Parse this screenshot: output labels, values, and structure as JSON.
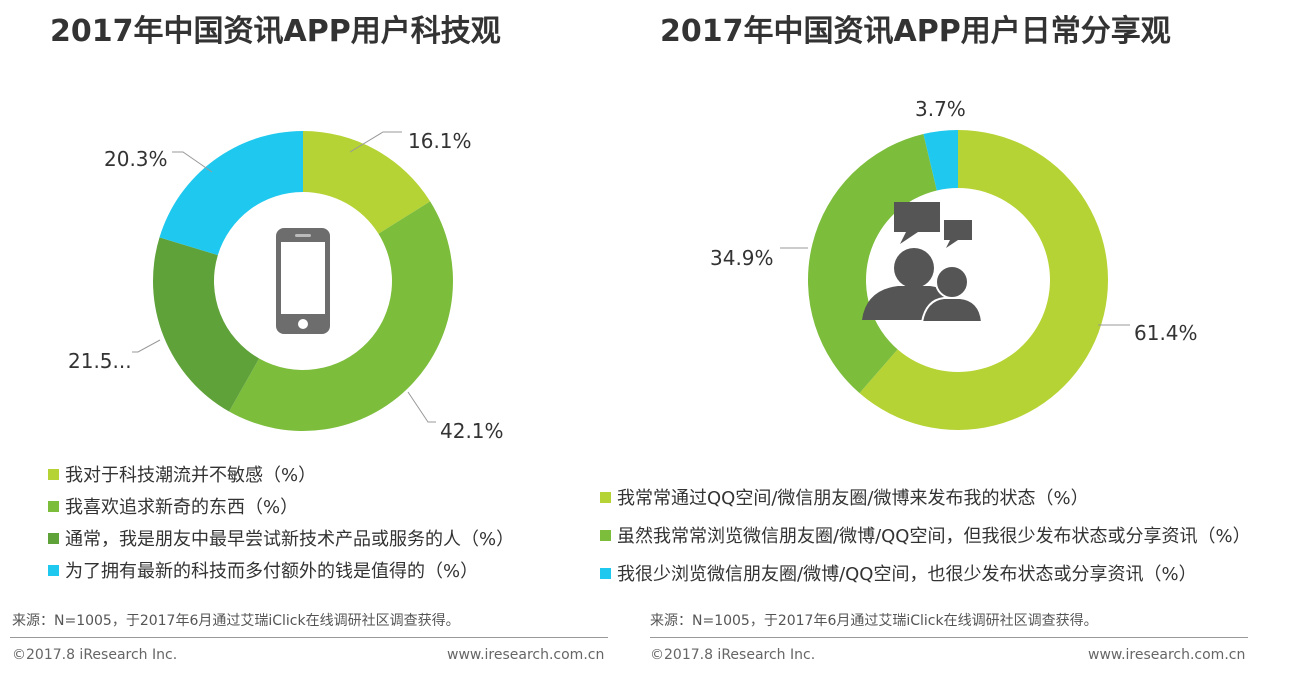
{
  "chart_data": [
    {
      "type": "pie",
      "title": "2017年中国资讯APP用户科技观",
      "categories": [
        "我对于科技潮流并不敏感（%）",
        "我喜欢追求新奇的东西（%）",
        "通常，我是朋友中最早尝试新技术产品或服务的人（%）",
        "为了拥有最新的科技而多付额外的钱是值得的（%）"
      ],
      "values": [
        16.1,
        42.1,
        21.5,
        20.3
      ],
      "data_labels": [
        "16.1%",
        "42.1%",
        "21.5...",
        "20.3%"
      ],
      "colors": [
        "#b5d334",
        "#7cbd3c",
        "#5fa23a",
        "#1fc8ee"
      ],
      "center_icon": "smartphone-icon",
      "legend_position": "bottom"
    },
    {
      "type": "pie",
      "title": "2017年中国资讯APP用户日常分享观",
      "categories": [
        "我常常通过QQ空间/微信朋友圈/微博来发布我的状态（%）",
        "虽然我常常浏览微信朋友圈/微博/QQ空间，但我很少发布状态或分享资讯（%）",
        "我很少浏览微信朋友圈/微博/QQ空间，也很少发布状态或分享资讯（%）"
      ],
      "values": [
        61.4,
        34.9,
        3.7
      ],
      "data_labels": [
        "61.4%",
        "34.9%",
        "3.7%"
      ],
      "colors": [
        "#b5d334",
        "#7cbd3c",
        "#1fc8ee"
      ],
      "center_icon": "users-chat-icon",
      "legend_position": "bottom"
    }
  ],
  "footer": {
    "source": "来源：N=1005，于2017年6月通过艾瑞iClick在线调研社区调查获得。",
    "copyright": "©2017.8 iResearch Inc.",
    "website": "www.iresearch.com.cn"
  }
}
